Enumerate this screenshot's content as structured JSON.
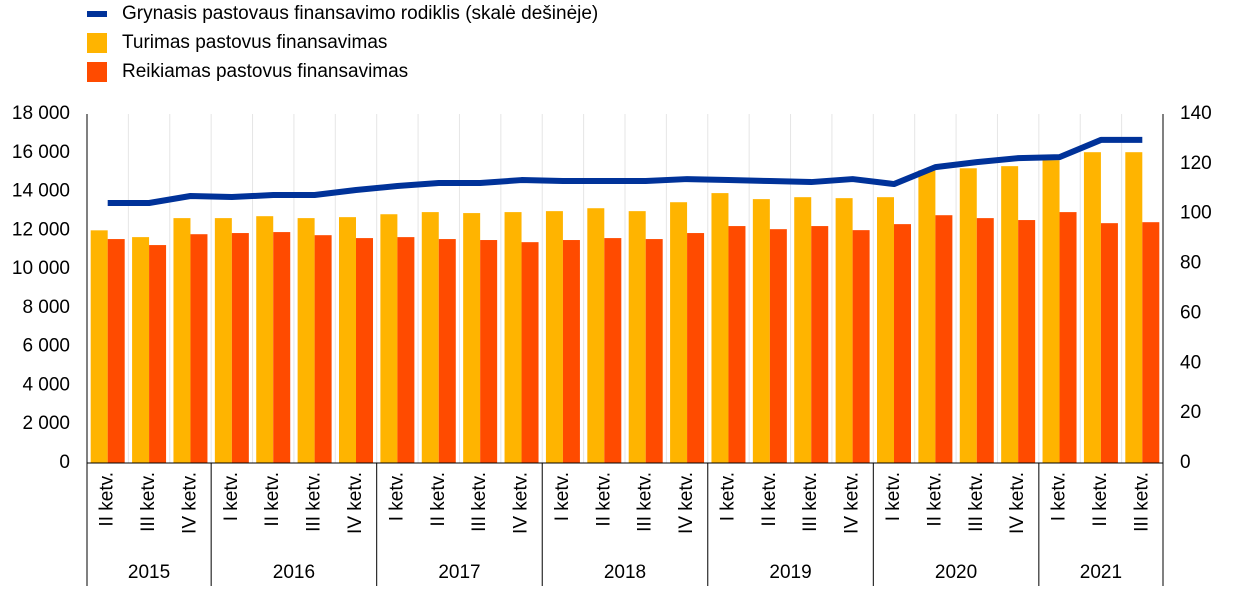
{
  "chart_data": {
    "type": "bar_line",
    "groups": [
      {
        "label": "2015",
        "categories": [
          "II ketv.",
          "III ketv.",
          "IV ketv."
        ]
      },
      {
        "label": "2016",
        "categories": [
          "I ketv.",
          "II ketv.",
          "III ketv.",
          "IV ketv."
        ]
      },
      {
        "label": "2017",
        "categories": [
          "I ketv.",
          "II ketv.",
          "III ketv.",
          "IV ketv."
        ]
      },
      {
        "label": "2018",
        "categories": [
          "I ketv.",
          "II ketv.",
          "III ketv.",
          "IV ketv."
        ]
      },
      {
        "label": "2019",
        "categories": [
          "I ketv.",
          "II ketv.",
          "III ketv.",
          "IV ketv."
        ]
      },
      {
        "label": "2020",
        "categories": [
          "I ketv.",
          "II ketv.",
          "III ketv.",
          "IV ketv."
        ]
      },
      {
        "label": "2021",
        "categories": [
          "I ketv.",
          "II ketv.",
          "III ketv."
        ]
      }
    ],
    "series": [
      {
        "name": "Grynasis pastovaus finansavimo rodiklis (skalė dešinėje)",
        "color": "#003299",
        "type": "line",
        "axis": "y2",
        "values": [
          104.3,
          104.3,
          107.1,
          106.7,
          107.5,
          107.5,
          109.5,
          111.1,
          112.3,
          112.3,
          113.5,
          113.1,
          113.1,
          113.1,
          113.9,
          113.5,
          113.1,
          112.7,
          113.9,
          111.9,
          118.7,
          120.7,
          122.3,
          122.7,
          129.6,
          129.6
        ]
      },
      {
        "name": "Turimas pastovus finansavimas",
        "color": "#FFB400",
        "type": "bar",
        "values": [
          12000,
          11650,
          12630,
          12630,
          12730,
          12630,
          12680,
          12830,
          12940,
          12890,
          12940,
          12990,
          13140,
          12990,
          13450,
          13920,
          13610,
          13710,
          13660,
          13710,
          15100,
          15200,
          15310,
          15620,
          16030,
          16030
        ]
      },
      {
        "name": "Reikiamas pastovus finansavimas",
        "color": "#FF4B00",
        "type": "bar",
        "values": [
          11550,
          11240,
          11800,
          11860,
          11910,
          11750,
          11600,
          11650,
          11550,
          11500,
          11390,
          11500,
          11600,
          11550,
          11860,
          12220,
          12060,
          12220,
          12010,
          12320,
          12780,
          12630,
          12530,
          12940,
          12370,
          12420
        ]
      }
    ],
    "ylim": [
      0,
      18000
    ],
    "yticks": [
      0,
      {
        "value": 2000,
        "label": "2 000"
      },
      {
        "value": 4000,
        "label": "4 000"
      },
      {
        "value": 6000,
        "label": "6 000"
      },
      {
        "value": 8000,
        "label": "8 000"
      },
      {
        "value": 10000,
        "label": "10 000"
      },
      {
        "value": 12000,
        "label": "12 000"
      },
      {
        "value": 14000,
        "label": "14 000"
      },
      {
        "value": 16000,
        "label": "16 000"
      },
      {
        "value": 18000,
        "label": "18 000"
      }
    ],
    "y2lim": [
      0,
      140
    ],
    "y2ticks": [
      0,
      20,
      40,
      60,
      80,
      100,
      120,
      140
    ]
  }
}
